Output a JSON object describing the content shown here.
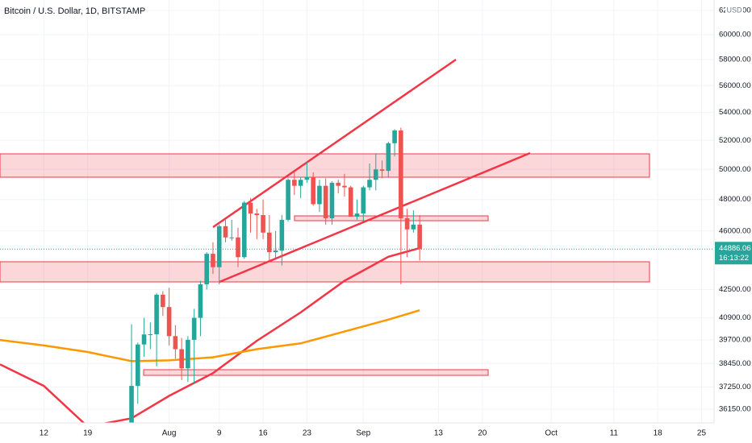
{
  "chart_data": {
    "type": "candlestick",
    "title": "Bitcoin / U.S. Dollar, 1D, BITSTAMP",
    "currency": "USD",
    "log_scale": true,
    "grid": true,
    "up_color": "#26a69a",
    "down_color": "#ef5350",
    "x": [
      "Jul 26",
      "Jul 27",
      "Jul 28",
      "Jul 29",
      "Jul 30",
      "Jul 31",
      "Aug 1",
      "Aug 2",
      "Aug 3",
      "Aug 4",
      "Aug 5",
      "Aug 6",
      "Aug 7",
      "Aug 8",
      "Aug 9",
      "Aug 10",
      "Aug 11",
      "Aug 12",
      "Aug 13",
      "Aug 14",
      "Aug 15",
      "Aug 16",
      "Aug 17",
      "Aug 18",
      "Aug 19",
      "Aug 20",
      "Aug 21",
      "Aug 22",
      "Aug 23",
      "Aug 24",
      "Aug 25",
      "Aug 26",
      "Aug 27",
      "Aug 28",
      "Aug 29",
      "Aug 30",
      "Aug 31",
      "Sep 1",
      "Sep 2",
      "Sep 3",
      "Sep 4",
      "Sep 5",
      "Sep 6",
      "Sep 7",
      "Sep 8",
      "Sep 9",
      "Sep 10"
    ],
    "open": [
      35400,
      37300,
      39450,
      39990,
      40000,
      42200,
      41500,
      39900,
      39200,
      38200,
      39700,
      40900,
      42800,
      44600,
      43800,
      46300,
      45600,
      45600,
      44400,
      47800,
      47100,
      47000,
      45900,
      44700,
      44800,
      46700,
      49300,
      48900,
      49300,
      49500,
      47700,
      48900,
      46800,
      49100,
      48900,
      48800,
      46900,
      47100,
      48800,
      49300,
      50000,
      49900,
      51800,
      52700,
      46800,
      46100,
      46400
    ],
    "high": [
      40550,
      39550,
      40900,
      40650,
      42300,
      42400,
      42600,
      40500,
      39800,
      39900,
      41400,
      43000,
      44700,
      45300,
      46400,
      46700,
      46700,
      46200,
      47900,
      48100,
      47400,
      48000,
      47000,
      46000,
      47000,
      49400,
      49800,
      49500,
      50500,
      49800,
      49300,
      49400,
      49200,
      49300,
      49700,
      48900,
      48000,
      48900,
      50400,
      51100,
      50600,
      51900,
      52800,
      52900,
      47400,
      47300,
      47000
    ],
    "low": [
      35200,
      36400,
      38800,
      39200,
      38300,
      41000,
      39400,
      38700,
      37600,
      37500,
      37400,
      39900,
      42500,
      43400,
      42800,
      45300,
      45400,
      43800,
      44300,
      45900,
      45500,
      45500,
      44200,
      44300,
      43900,
      46600,
      48300,
      48100,
      49100,
      47600,
      47200,
      46400,
      46400,
      48400,
      48200,
      46900,
      46700,
      46600,
      48600,
      48600,
      49400,
      49500,
      50900,
      42800,
      44400,
      45900,
      44200
    ],
    "close": [
      37300,
      39450,
      39990,
      40000,
      42200,
      41500,
      39900,
      39200,
      38200,
      39700,
      40900,
      42800,
      44600,
      43800,
      46300,
      45600,
      45600,
      44400,
      47800,
      47100,
      47000,
      45900,
      44700,
      44800,
      46700,
      49300,
      48900,
      49300,
      49500,
      47700,
      48900,
      46800,
      49100,
      48900,
      48800,
      46900,
      47100,
      48800,
      49300,
      50000,
      49900,
      51800,
      52700,
      46800,
      46100,
      46400,
      44886.06
    ],
    "series": [
      {
        "color": "#f23645",
        "x": [
          "Jul 5",
          "Jul 12",
          "Jul 19",
          "Jul 26",
          "Aug 1",
          "Aug 8",
          "Aug 15",
          "Aug 22",
          "Aug 29",
          "Sep 5",
          "Sep 10"
        ],
        "values": [
          38400,
          37300,
          35300,
          35700,
          36800,
          37950,
          39650,
          41200,
          43000,
          44420,
          44950
        ]
      },
      {
        "color": "#ff9800",
        "x": [
          "Jul 5",
          "Jul 12",
          "Jul 19",
          "Jul 26",
          "Aug 1",
          "Aug 8",
          "Aug 15",
          "Aug 22",
          "Aug 29",
          "Sep 5",
          "Sep 10"
        ],
        "values": [
          39690,
          39400,
          39050,
          38570,
          38610,
          38770,
          39200,
          39510,
          40150,
          40800,
          41320
        ]
      }
    ],
    "last_price": 44886.06,
    "countdown": "16:13:22",
    "xlim": [
      "Jul 5",
      "Oct 27"
    ],
    "xticks": [
      {
        "value": "Jul 12",
        "label": "12"
      },
      {
        "value": "Jul 19",
        "label": "19"
      },
      {
        "value": "Aug 1",
        "label": "Aug"
      },
      {
        "value": "Aug 9",
        "label": "9"
      },
      {
        "value": "Aug 16",
        "label": "16"
      },
      {
        "value": "Aug 23",
        "label": "23"
      },
      {
        "value": "Sep 1",
        "label": "Sep"
      },
      {
        "value": "Sep 13",
        "label": "13"
      },
      {
        "value": "Sep 20",
        "label": "20"
      },
      {
        "value": "Oct 1",
        "label": "Oct"
      },
      {
        "value": "Oct 11",
        "label": "11"
      },
      {
        "value": "Oct 18",
        "label": "18"
      },
      {
        "value": "Oct 25",
        "label": "25"
      }
    ],
    "ylim": [
      35480,
      62880
    ],
    "yticks": [
      {
        "value": 62000,
        "label": "62000.00"
      },
      {
        "value": 60000,
        "label": "60000.00"
      },
      {
        "value": 58000,
        "label": "58000.00"
      },
      {
        "value": 56000,
        "label": "56000.00"
      },
      {
        "value": 54000,
        "label": "54000.00"
      },
      {
        "value": 52000,
        "label": "52000.00"
      },
      {
        "value": 50000,
        "label": "50000.00"
      },
      {
        "value": 48000,
        "label": "48000.00"
      },
      {
        "value": 46000,
        "label": "46000.00"
      },
      {
        "value": 42500,
        "label": "42500.00"
      },
      {
        "value": 40900,
        "label": "40900.00"
      },
      {
        "value": 39700,
        "label": "39700.00"
      },
      {
        "value": 38450,
        "label": "38450.00"
      },
      {
        "value": 37250,
        "label": "37250.00"
      },
      {
        "value": 36150,
        "label": "36150.00"
      }
    ]
  }
}
